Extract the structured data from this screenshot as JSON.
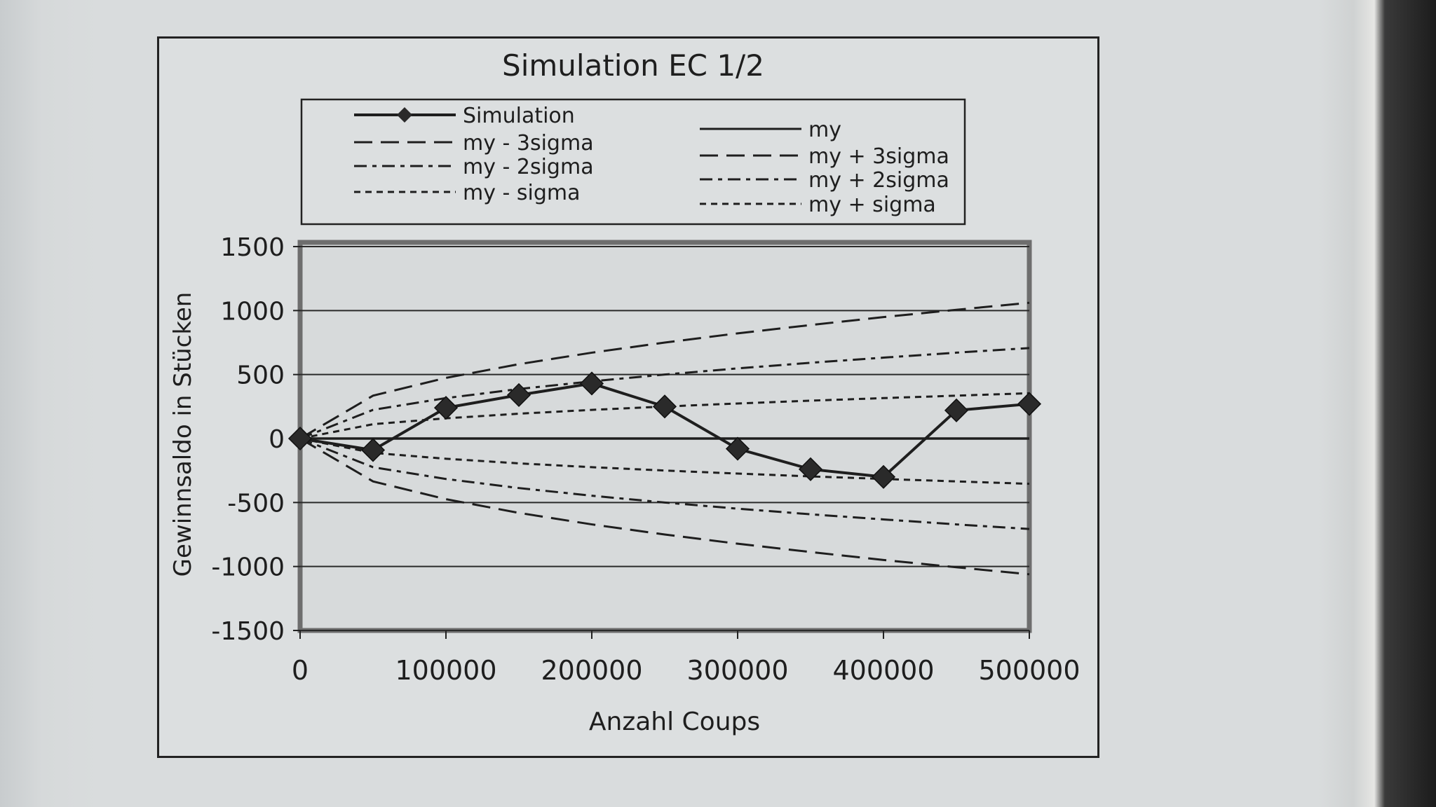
{
  "chart_data": {
    "type": "line",
    "title": "Simulation EC 1/2",
    "xlabel": "Anzahl Coups",
    "ylabel": "Gewinnsaldo in Stücken",
    "xlim": [
      0,
      500000
    ],
    "ylim": [
      -1500,
      1500
    ],
    "x_ticks": [
      "0",
      "100000",
      "200000",
      "300000",
      "400000",
      "500000"
    ],
    "y_ticks": [
      "1500",
      "1000",
      "500",
      "0",
      "-500",
      "-1000",
      "-1500"
    ],
    "grid": true,
    "legend_position": "top",
    "x": [
      0,
      50000,
      100000,
      150000,
      200000,
      250000,
      300000,
      350000,
      400000,
      450000,
      500000
    ],
    "series": [
      {
        "name": "Simulation",
        "style": "solid-diamond",
        "values": [
          0,
          -90,
          240,
          340,
          430,
          250,
          -80,
          -240,
          -300,
          220,
          270
        ]
      },
      {
        "name": "my",
        "style": "solid",
        "values": [
          0,
          0,
          0,
          0,
          0,
          0,
          0,
          0,
          0,
          0,
          0
        ]
      },
      {
        "name": "my - 3sigma",
        "style": "long-dash",
        "values": [
          0,
          -335,
          -474,
          -581,
          -671,
          -750,
          -822,
          -887,
          -949,
          -1006,
          -1061
        ]
      },
      {
        "name": "my + 3sigma",
        "style": "long-dash",
        "values": [
          0,
          335,
          474,
          581,
          671,
          750,
          822,
          887,
          949,
          1006,
          1061
        ]
      },
      {
        "name": "my - 2sigma",
        "style": "dash-dot",
        "values": [
          0,
          -224,
          -316,
          -387,
          -447,
          -500,
          -548,
          -592,
          -632,
          -671,
          -707
        ]
      },
      {
        "name": "my + 2sigma",
        "style": "dash-dot",
        "values": [
          0,
          224,
          316,
          387,
          447,
          500,
          548,
          592,
          632,
          671,
          707
        ]
      },
      {
        "name": "my - sigma",
        "style": "short-dash",
        "values": [
          0,
          -112,
          -158,
          -194,
          -224,
          -250,
          -274,
          -296,
          -316,
          -335,
          -354
        ]
      },
      {
        "name": "my + sigma",
        "style": "short-dash",
        "values": [
          0,
          112,
          158,
          194,
          224,
          250,
          274,
          296,
          316,
          335,
          354
        ]
      }
    ]
  }
}
